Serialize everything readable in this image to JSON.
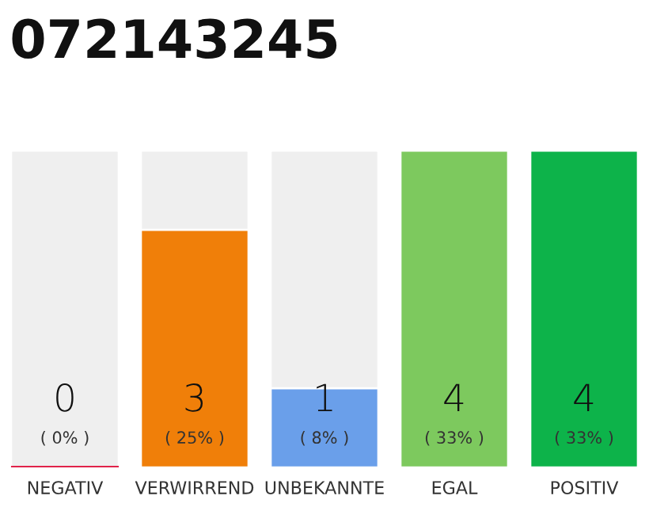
{
  "chart_data": {
    "type": "bar",
    "title": "072143245",
    "categories": [
      "NEGATIV",
      "VERWIRREND",
      "UNBEKANNTE",
      "EGAL",
      "POSITIV"
    ],
    "values": [
      0,
      3,
      1,
      4,
      4
    ],
    "colors": [
      "#e0234a",
      "#f07f09",
      "#6a9fea",
      "#7dc95e",
      "#0db34a"
    ],
    "ylim": [
      0,
      4
    ],
    "data_labels": true,
    "tick_labels": "x",
    "annotations": [
      "( 0% )",
      "( 25% )",
      "( 8% )",
      "( 33% )",
      "( 33% )"
    ]
  }
}
